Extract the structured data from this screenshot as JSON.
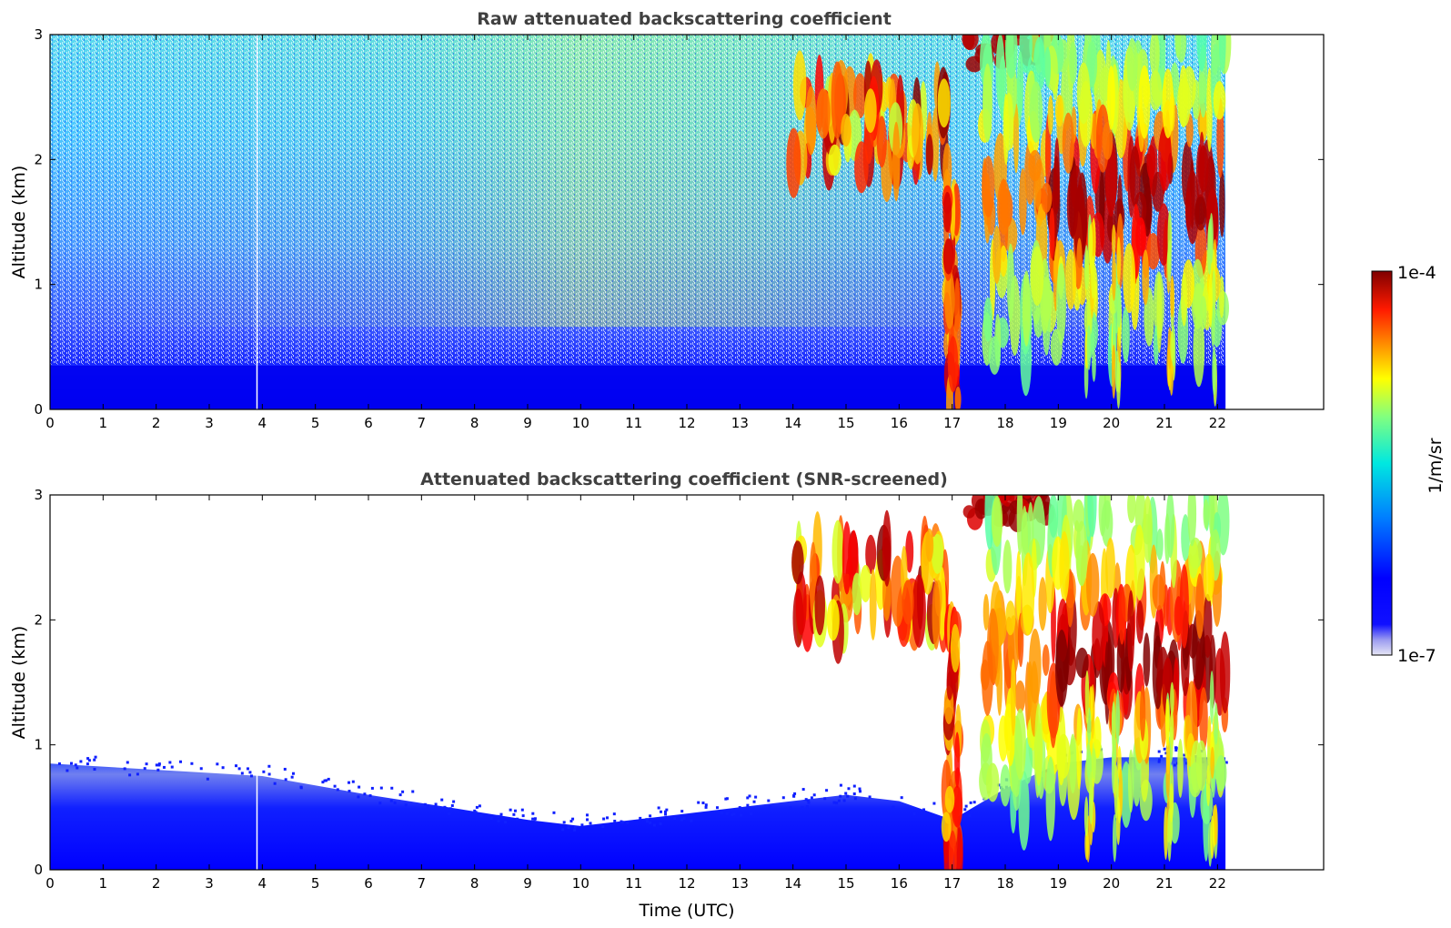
{
  "chart_data": [
    {
      "type": "heatmap",
      "title": "Raw attenuated backscattering coefficient",
      "xlabel": "",
      "ylabel": "Altitude (km)",
      "xlim": [
        0,
        24
      ],
      "ylim": [
        0,
        3
      ],
      "xticks": [
        0,
        1,
        2,
        3,
        4,
        5,
        6,
        7,
        8,
        9,
        10,
        11,
        12,
        13,
        14,
        15,
        16,
        17,
        18,
        19,
        20,
        21,
        22
      ],
      "yticks": [
        0,
        1,
        2,
        3
      ],
      "data_end_time": 22.15,
      "gap_time": 3.9,
      "screened": false,
      "features": [
        {
          "kind": "boundary_layer",
          "x_range": [
            0,
            22.15
          ],
          "top_km": 0.35
        },
        {
          "kind": "aerosol_cloud_layer",
          "x_range": [
            14,
            16.9
          ],
          "alt_range_km": [
            1.8,
            2.6
          ]
        },
        {
          "kind": "precipitation_streak",
          "x": 17.1,
          "alt_range_km": [
            0,
            2.0
          ]
        },
        {
          "kind": "cloud_top_layer",
          "x_range": [
            17.3,
            18.8
          ],
          "alt_range_km": [
            2.7,
            3.0
          ]
        },
        {
          "kind": "convective_cloud",
          "x_range": [
            19,
            22.15
          ],
          "alt_range_km": [
            0.3,
            3.0
          ]
        }
      ]
    },
    {
      "type": "heatmap",
      "title": "Attenuated backscattering coefficient (SNR-screened)",
      "xlabel": "Time (UTC)",
      "ylabel": "Altitude (km)",
      "xlim": [
        0,
        24
      ],
      "ylim": [
        0,
        3
      ],
      "xticks": [
        0,
        1,
        2,
        3,
        4,
        5,
        6,
        7,
        8,
        9,
        10,
        11,
        12,
        13,
        14,
        15,
        16,
        17,
        18,
        19,
        20,
        21,
        22
      ],
      "yticks": [
        0,
        1,
        2,
        3
      ],
      "data_end_time": 22.15,
      "gap_time": 3.9,
      "screened": true,
      "boundary_layer_top_km": [
        [
          0,
          0.85
        ],
        [
          2,
          0.8
        ],
        [
          4,
          0.75
        ],
        [
          6,
          0.6
        ],
        [
          7.5,
          0.5
        ],
        [
          9,
          0.4
        ],
        [
          10,
          0.35
        ],
        [
          12,
          0.45
        ],
        [
          13,
          0.5
        ],
        [
          15,
          0.6
        ],
        [
          16,
          0.55
        ],
        [
          17,
          0.4
        ],
        [
          18,
          0.65
        ],
        [
          19,
          0.85
        ],
        [
          20,
          0.9
        ],
        [
          22.15,
          0.9
        ]
      ]
    }
  ],
  "colorbar": {
    "min_label": "1e-7",
    "max_label": "1e-4",
    "label": "1/m/sr",
    "colormap": "jet"
  },
  "colors": {
    "dark_red": "#800000",
    "red": "#ff0000",
    "yellow": "#ffff00",
    "cyan": "#00ffff",
    "blue": "#0000ff",
    "navy": "#00008f"
  }
}
